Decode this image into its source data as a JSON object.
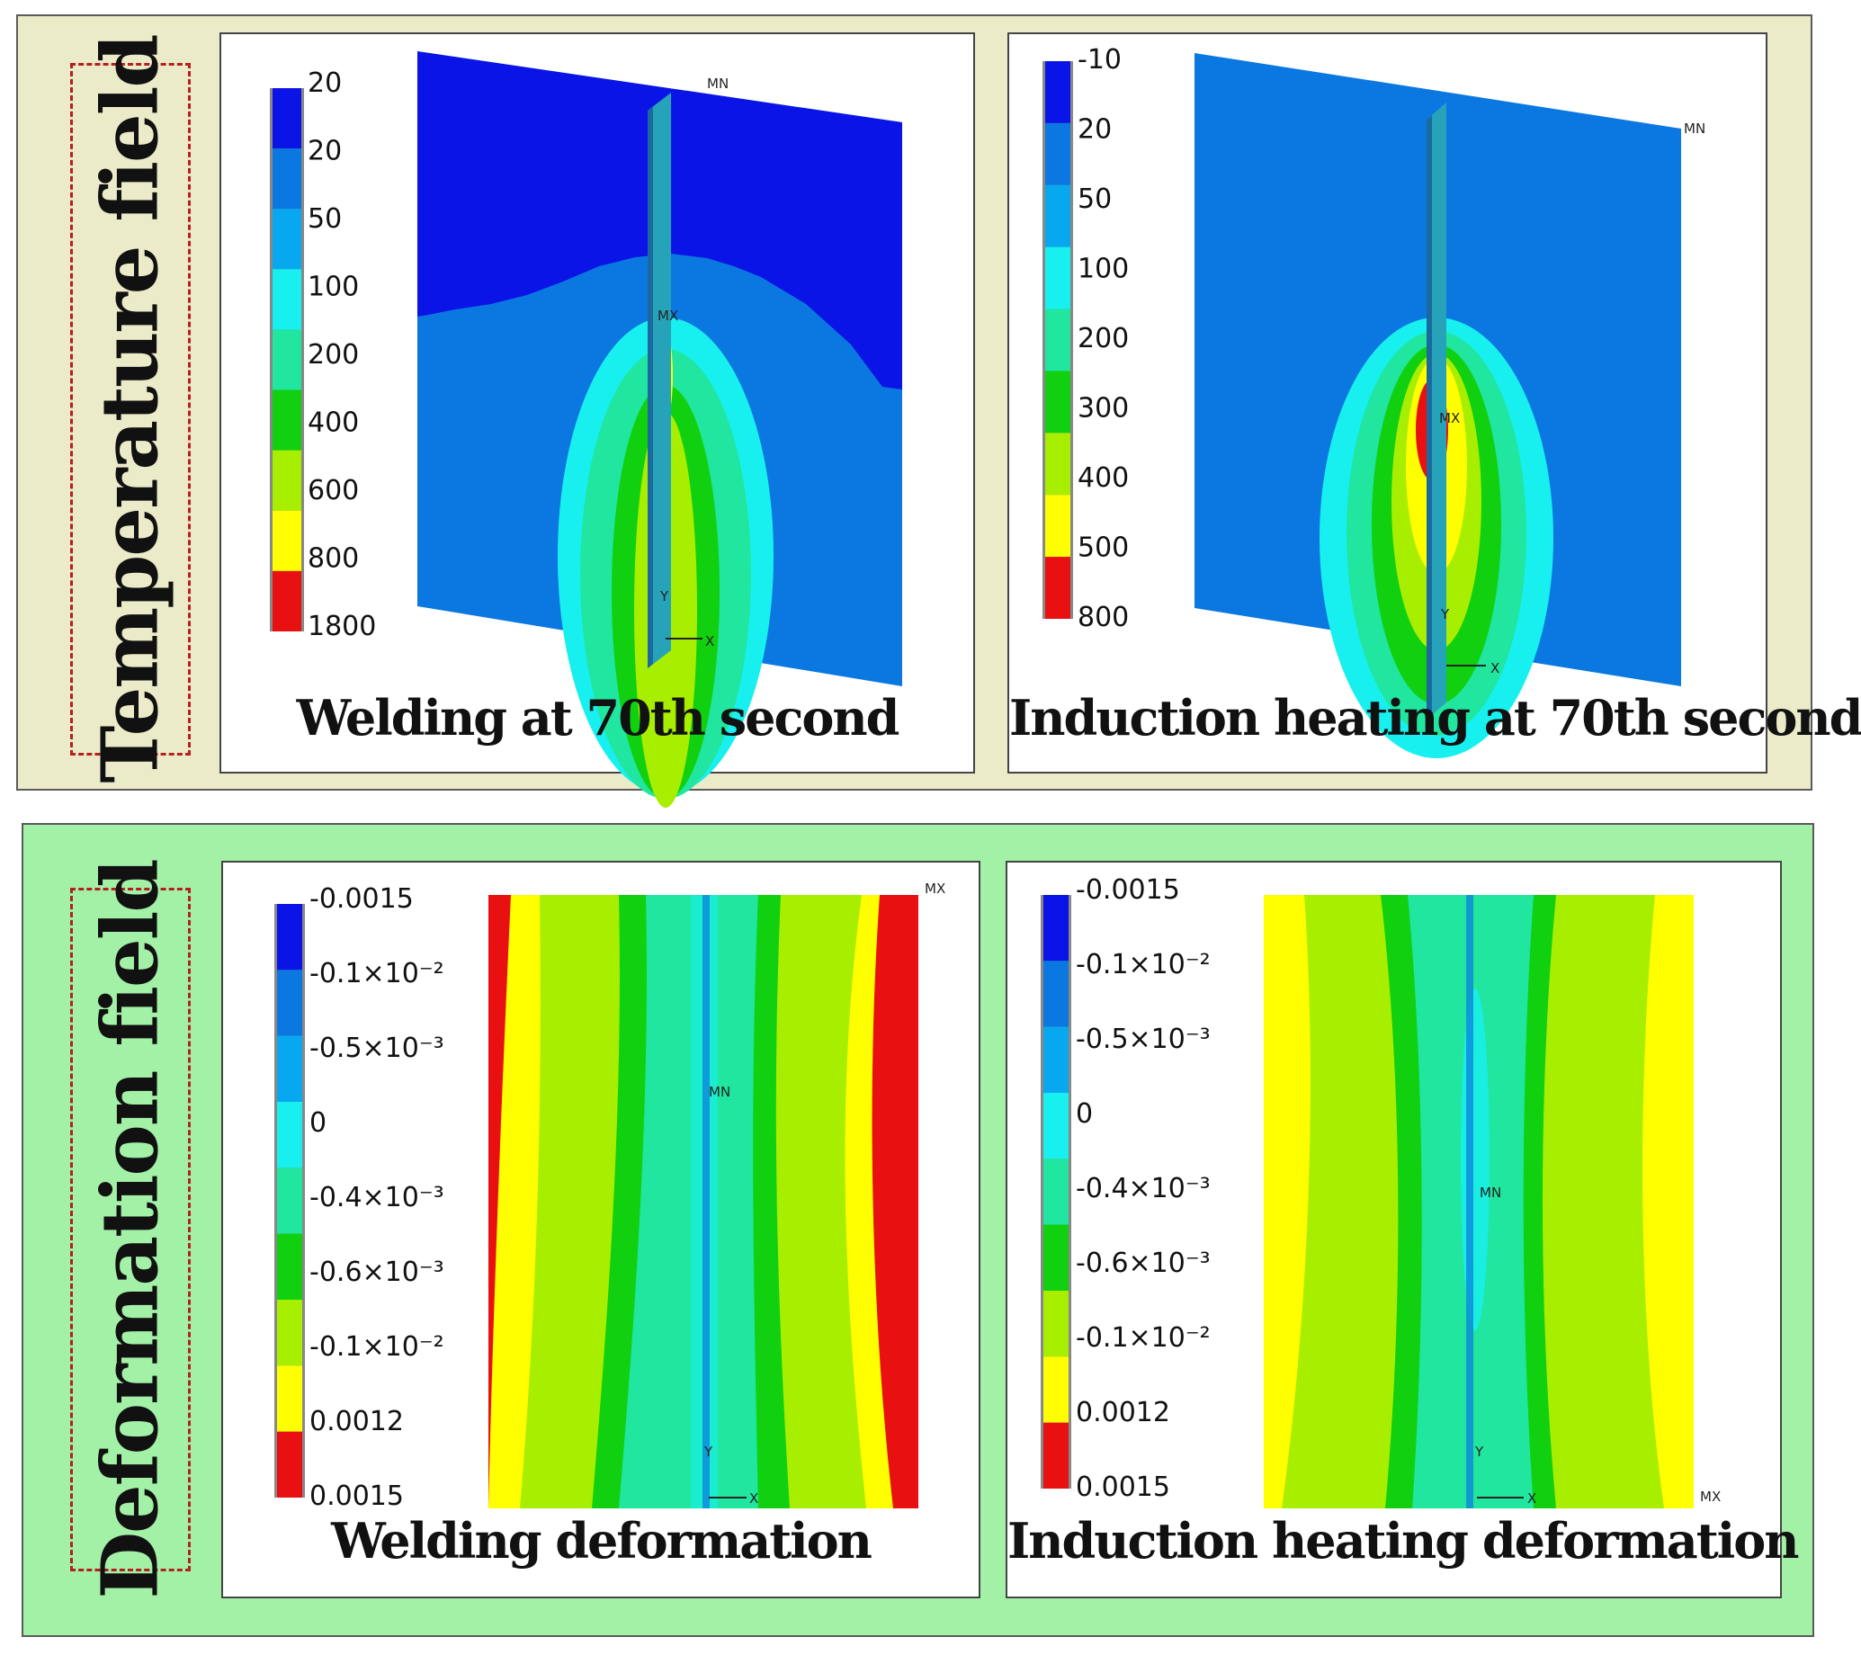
{
  "temperature_section": {
    "label": "Temperature field",
    "panels": [
      {
        "caption": "Welding at 70th second",
        "legend": [
          "20",
          "20",
          "50",
          "100",
          "200",
          "400",
          "600",
          "800",
          "1800"
        ],
        "markers": {
          "mn": "MN",
          "mx": "MX",
          "y": "Y",
          "x": "X"
        }
      },
      {
        "caption": "Induction heating at 70th second",
        "legend": [
          "-10",
          "20",
          "50",
          "100",
          "200",
          "300",
          "400",
          "500",
          "800"
        ],
        "markers": {
          "mn": "MN",
          "mx": "MX",
          "y": "Y",
          "x": "X"
        }
      }
    ]
  },
  "deformation_section": {
    "label": "Deformation field",
    "panels": [
      {
        "caption": "Welding deformation",
        "legend": [
          "-0.0015",
          "-0.1×10⁻²",
          "-0.5×10⁻³",
          "0",
          "-0.4×10⁻³",
          "-0.6×10⁻³",
          "-0.1×10⁻²",
          "0.0012",
          "0.0015"
        ],
        "markers": {
          "mn": "MN",
          "mx": "MX",
          "y": "Y",
          "x": "X"
        }
      },
      {
        "caption": "Induction heating deformation",
        "legend": [
          "-0.0015",
          "-0.1×10⁻²",
          "-0.5×10⁻³",
          "0",
          "-0.4×10⁻³",
          "-0.6×10⁻³",
          "-0.1×10⁻²",
          "0.0012",
          "0.0015"
        ],
        "markers": {
          "mn": "MN",
          "mx": "MX",
          "y": "Y",
          "x": "X"
        }
      }
    ]
  },
  "colors": {
    "temp_scale": [
      "#0a14e6",
      "#0a78e0",
      "#08a8f0",
      "#18f0f0",
      "#20e6a0",
      "#10d010",
      "#a8ee00",
      "#ffff00",
      "#e81010"
    ],
    "def_scale": [
      "#0a14e6",
      "#0a78e0",
      "#08a8f0",
      "#18f0f0",
      "#20e6a0",
      "#10d010",
      "#a8ee00",
      "#ffff00",
      "#e81010"
    ],
    "temp_section_bg": "#ecebc9",
    "def_section_bg": "#a3f0a7",
    "label_border": "#b22020"
  }
}
